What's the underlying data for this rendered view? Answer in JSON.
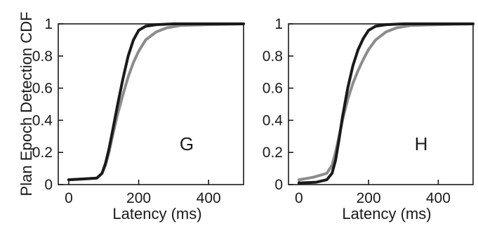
{
  "chart_data": [
    {
      "type": "line",
      "panel_label": "G",
      "xlabel": "Latency (ms)",
      "ylabel": "Plan Epoch Detection CDF",
      "xlim": [
        -30,
        500
      ],
      "ylim": [
        0,
        1
      ],
      "xticks": [
        "0",
        "200",
        "400"
      ],
      "xtick_values": [
        0,
        200,
        400
      ],
      "yticks": [
        "0",
        "0.2",
        "0.4",
        "0.6",
        "0.8",
        "1"
      ],
      "ytick_values": [
        0,
        0.2,
        0.4,
        0.6,
        0.8,
        1
      ],
      "series": [
        {
          "color": "#1a1a1a",
          "x": [
            0,
            40,
            80,
            95,
            105,
            115,
            125,
            140,
            155,
            170,
            185,
            200,
            220,
            250,
            300,
            400,
            500
          ],
          "y": [
            0.03,
            0.035,
            0.04,
            0.07,
            0.13,
            0.22,
            0.33,
            0.5,
            0.66,
            0.8,
            0.9,
            0.96,
            0.985,
            0.995,
            1.0,
            1.0,
            1.0
          ]
        },
        {
          "color": "#8c8c8c",
          "x": [
            0,
            40,
            80,
            95,
            105,
            115,
            125,
            140,
            155,
            170,
            185,
            200,
            220,
            250,
            280,
            320,
            400,
            500
          ],
          "y": [
            0.03,
            0.035,
            0.04,
            0.07,
            0.12,
            0.2,
            0.3,
            0.44,
            0.56,
            0.67,
            0.76,
            0.83,
            0.9,
            0.95,
            0.975,
            0.99,
            0.995,
            1.0
          ]
        }
      ]
    },
    {
      "type": "line",
      "panel_label": "H",
      "xlabel": "Latency (ms)",
      "ylabel": "",
      "xlim": [
        -30,
        500
      ],
      "ylim": [
        0,
        1
      ],
      "xticks": [
        "0",
        "200",
        "400"
      ],
      "xtick_values": [
        0,
        200,
        400
      ],
      "yticks": [
        "0",
        "0.2",
        "0.4",
        "0.6",
        "0.8",
        "1"
      ],
      "ytick_values": [
        0,
        0.2,
        0.4,
        0.6,
        0.8,
        1
      ],
      "series": [
        {
          "color": "#1a1a1a",
          "x": [
            0,
            50,
            80,
            95,
            105,
            115,
            125,
            140,
            155,
            170,
            185,
            200,
            220,
            250,
            300,
            400,
            500
          ],
          "y": [
            0.01,
            0.015,
            0.03,
            0.07,
            0.15,
            0.28,
            0.42,
            0.6,
            0.74,
            0.84,
            0.91,
            0.96,
            0.985,
            0.995,
            1.0,
            1.0,
            1.0
          ]
        },
        {
          "color": "#8c8c8c",
          "x": [
            0,
            40,
            80,
            95,
            105,
            115,
            125,
            140,
            155,
            170,
            185,
            200,
            220,
            250,
            280,
            320,
            400,
            500
          ],
          "y": [
            0.03,
            0.045,
            0.07,
            0.12,
            0.2,
            0.3,
            0.4,
            0.53,
            0.63,
            0.71,
            0.78,
            0.84,
            0.9,
            0.95,
            0.975,
            0.99,
            0.995,
            1.0
          ]
        }
      ]
    }
  ]
}
